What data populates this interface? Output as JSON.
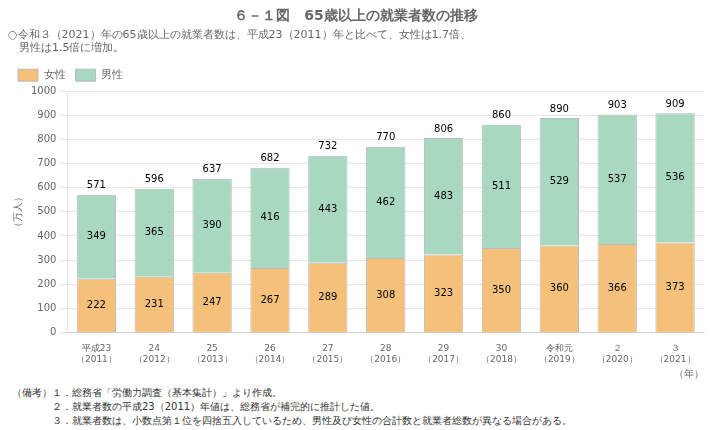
{
  "chart_data": {
    "type": "bar",
    "title": "６－１図　65歳以上の就業者数の推移",
    "subtitle": [
      "○令和３（2021）年の65歳以上の就業者数は、平成23（2011）年と比べて、女性は1.7倍、",
      "　男性は1.5倍に増加。"
    ],
    "ylabel": "（万人）",
    "xlabel": "（年）",
    "notes": [
      "（備考）１．総務省「労働力調査（基本集計）」より作成。",
      "　　　　２．就業者数の平成23（2011）年値は、総務省が補完的に推計した値。",
      "　　　　３．就業者数は、小数点第１位を四捨五入しているため、男性及び女性の合計数と就業者総数が異なる場合がある。"
    ],
    "categories": [
      "平成23\n（2011）",
      "24\n（2012）",
      "25\n（2013）",
      "26\n（2014）",
      "27\n（2015）",
      "28\n（2016）",
      "29\n（2017）",
      "30\n（2018）",
      "令和元\n（2019）",
      "２\n（2020）",
      "３\n（2021）"
    ],
    "series": [
      {
        "name": "女性",
        "color": "#F5C07A",
        "values": [
          222,
          231,
          247,
          267,
          289,
          308,
          323,
          350,
          360,
          366,
          373
        ]
      },
      {
        "name": "男性",
        "color": "#A8D8C0",
        "values": [
          349,
          365,
          390,
          416,
          443,
          462,
          483,
          511,
          529,
          537,
          536
        ]
      }
    ],
    "totals": [
      571,
      596,
      637,
      682,
      732,
      770,
      806,
      860,
      890,
      903,
      909
    ],
    "stacked": true,
    "data_labels": true,
    "ylim": [
      0,
      1000
    ],
    "yticks": [
      0,
      100,
      200,
      300,
      400,
      500,
      600,
      700,
      800,
      900,
      1000
    ],
    "grid": true,
    "legend": "upper left"
  }
}
